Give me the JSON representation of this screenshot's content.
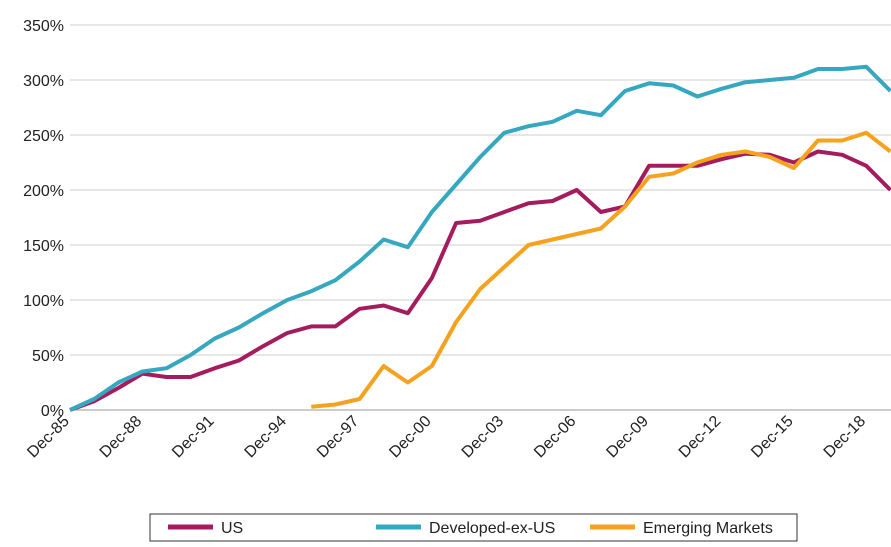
{
  "chart_data": {
    "type": "line",
    "categories": [
      "Dec-85",
      null,
      null,
      "Dec-88",
      null,
      null,
      "Dec-91",
      null,
      null,
      "Dec-94",
      null,
      null,
      "Dec-97",
      null,
      null,
      "Dec-00",
      null,
      null,
      "Dec-03",
      null,
      null,
      "Dec-06",
      null,
      null,
      "Dec-09",
      null,
      null,
      "Dec-12",
      null,
      null,
      "Dec-15",
      null,
      null,
      "Dec-18",
      null
    ],
    "series": [
      {
        "name": "US",
        "color": "#a51c5e",
        "values": [
          0,
          8,
          20,
          33,
          30,
          30,
          38,
          45,
          58,
          70,
          76,
          76,
          92,
          95,
          88,
          120,
          170,
          172,
          180,
          188,
          190,
          200,
          180,
          185,
          222,
          222,
          222,
          228,
          233,
          232,
          225,
          235,
          232,
          222,
          200
        ]
      },
      {
        "name": "Developed-ex-US",
        "color": "#35a8c0",
        "values": [
          0,
          10,
          25,
          35,
          38,
          50,
          65,
          75,
          88,
          100,
          108,
          118,
          135,
          155,
          148,
          180,
          205,
          230,
          252,
          258,
          262,
          272,
          268,
          290,
          297,
          295,
          285,
          292,
          298,
          300,
          302,
          310,
          310,
          312,
          290
        ]
      },
      {
        "name": "Emerging Markets",
        "color": "#f5a21f",
        "values": [
          null,
          null,
          null,
          null,
          null,
          null,
          null,
          null,
          null,
          null,
          3,
          5,
          10,
          40,
          25,
          40,
          80,
          110,
          130,
          150,
          155,
          160,
          165,
          185,
          212,
          215,
          225,
          232,
          235,
          230,
          220,
          245,
          245,
          252,
          235
        ]
      }
    ],
    "ylim": [
      0,
      350
    ],
    "yticks": [
      {
        "value": 0,
        "label": "0%"
      },
      {
        "value": 50,
        "label": "50%"
      },
      {
        "value": 100,
        "label": "100%"
      },
      {
        "value": 150,
        "label": "150%"
      },
      {
        "value": 200,
        "label": "200%"
      },
      {
        "value": 250,
        "label": "250%"
      },
      {
        "value": 300,
        "label": "300%"
      },
      {
        "value": 350,
        "label": "350%"
      }
    ],
    "grid": true,
    "legend": "bottom"
  }
}
